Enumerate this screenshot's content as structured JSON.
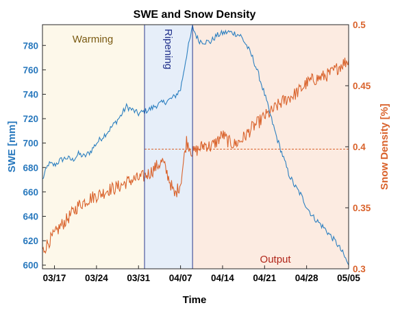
{
  "chart_data": {
    "type": "line",
    "title": "SWE and Snow Density",
    "xlabel": "Time",
    "ylabel_left": "SWE [mm]",
    "ylabel_right": "Snow Density [%]",
    "x_ticks": [
      "03/17",
      "03/24",
      "03/31",
      "04/07",
      "04/14",
      "04/21",
      "04/28",
      "05/05"
    ],
    "x_range": [
      "03/15",
      "05/05"
    ],
    "ylim_left": [
      597,
      797
    ],
    "yticks_left": [
      "600",
      "620",
      "640",
      "660",
      "680",
      "700",
      "720",
      "740",
      "760",
      "780"
    ],
    "ylim_right": [
      0.3,
      0.5
    ],
    "yticks_right": [
      "0.3",
      "0.35",
      "0.4",
      "0.45",
      "0.5"
    ],
    "colors": {
      "swe": "#2b7fc0",
      "density": "#d9622b",
      "left_axis": "#2878bd",
      "right_axis": "#d9622b",
      "warming_fill": "#fdf8ea",
      "ripening_fill": "#e6eef9",
      "output_fill": "#fcebe1",
      "boundary": "#2b3a8f",
      "reference_line": "#d9622b"
    },
    "phases": [
      {
        "name": "Warming",
        "start": "03/15",
        "end": "04/01",
        "label_color": "#7a5a12"
      },
      {
        "name": "Ripening",
        "start": "04/01",
        "end": "04/09",
        "label_color": "#1f2f8a"
      },
      {
        "name": "Output",
        "start": "04/09",
        "end": "05/05",
        "label_color": "#b02418"
      }
    ],
    "density_reference": 0.398,
    "series": [
      {
        "name": "SWE",
        "axis": "left",
        "x": [
          "03/15",
          "03/16",
          "03/17",
          "03/18",
          "03/19",
          "03/20",
          "03/21",
          "03/22",
          "03/23",
          "03/24",
          "03/25",
          "03/26",
          "03/27",
          "03/28",
          "03/29",
          "03/30",
          "03/31",
          "04/01",
          "04/02",
          "04/03",
          "04/04",
          "04/05",
          "04/06",
          "04/07",
          "04/08",
          "04/09",
          "04/10",
          "04/11",
          "04/12",
          "04/13",
          "04/14",
          "04/15",
          "04/16",
          "04/17",
          "04/18",
          "04/19",
          "04/20",
          "04/21",
          "04/22",
          "04/23",
          "04/24",
          "04/25",
          "04/26",
          "04/27",
          "04/28",
          "04/29",
          "04/30",
          "05/01",
          "05/02",
          "05/03",
          "05/04",
          "05/05"
        ],
        "y": [
          670,
          683,
          682,
          686,
          688,
          686,
          691,
          689,
          693,
          700,
          705,
          710,
          716,
          722,
          730,
          727,
          724,
          726,
          728,
          731,
          733,
          735,
          738,
          744,
          772,
          795,
          784,
          783,
          783,
          788,
          790,
          791,
          790,
          788,
          780,
          770,
          756,
          740,
          722,
          705,
          690,
          675,
          665,
          658,
          648,
          640,
          635,
          630,
          624,
          618,
          610,
          600
        ]
      },
      {
        "name": "Snow Density",
        "axis": "right",
        "x": [
          "03/15",
          "03/16",
          "03/17",
          "03/18",
          "03/19",
          "03/20",
          "03/21",
          "03/22",
          "03/23",
          "03/24",
          "03/25",
          "03/26",
          "03/27",
          "03/28",
          "03/29",
          "03/30",
          "03/31",
          "04/01",
          "04/02",
          "04/03",
          "04/04",
          "04/05",
          "04/06",
          "04/07",
          "04/08",
          "04/09",
          "04/10",
          "04/11",
          "04/12",
          "04/13",
          "04/14",
          "04/15",
          "04/16",
          "04/17",
          "04/18",
          "04/19",
          "04/20",
          "04/21",
          "04/22",
          "04/23",
          "04/24",
          "04/25",
          "04/26",
          "04/27",
          "04/28",
          "04/29",
          "04/30",
          "05/01",
          "05/02",
          "05/03",
          "05/04",
          "05/05"
        ],
        "y": [
          0.314,
          0.322,
          0.328,
          0.335,
          0.34,
          0.346,
          0.352,
          0.355,
          0.358,
          0.36,
          0.362,
          0.365,
          0.366,
          0.368,
          0.371,
          0.373,
          0.374,
          0.376,
          0.379,
          0.384,
          0.388,
          0.375,
          0.36,
          0.37,
          0.405,
          0.395,
          0.398,
          0.402,
          0.4,
          0.404,
          0.41,
          0.404,
          0.402,
          0.405,
          0.41,
          0.416,
          0.42,
          0.425,
          0.428,
          0.433,
          0.437,
          0.44,
          0.443,
          0.447,
          0.452,
          0.455,
          0.456,
          0.458,
          0.46,
          0.464,
          0.468,
          0.471
        ]
      }
    ]
  }
}
